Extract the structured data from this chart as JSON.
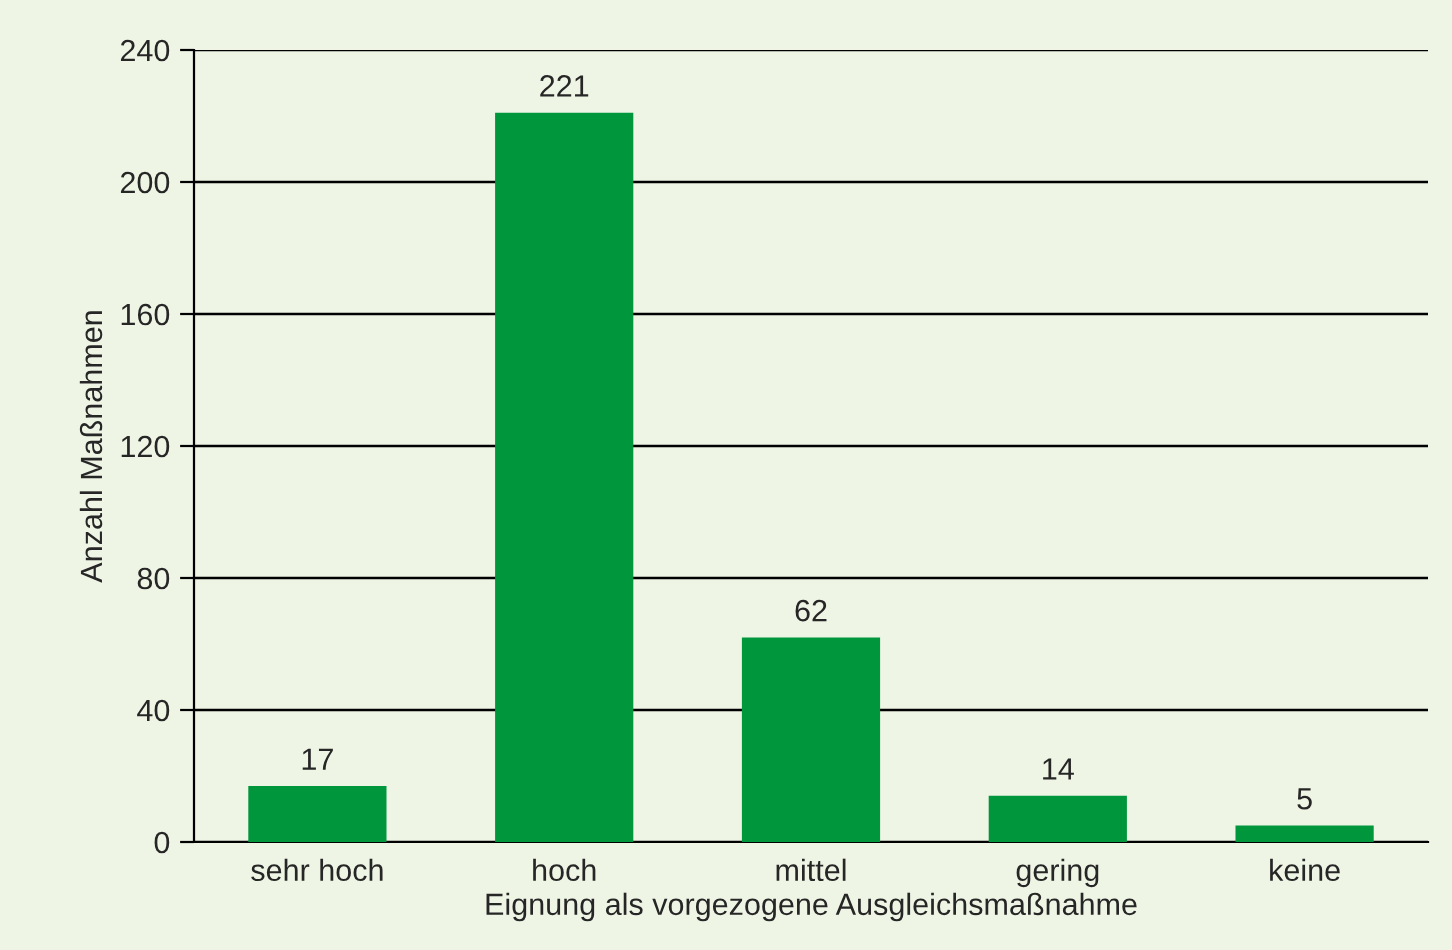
{
  "chart_data": {
    "type": "bar",
    "xlabel": "Eignung als vorgezogene Ausgleichsmaßnahme",
    "ylabel": "Anzahl Maßnahmen",
    "categories": [
      "sehr hoch",
      "hoch",
      "mittel",
      "gering",
      "keine"
    ],
    "values": [
      17,
      221,
      62,
      14,
      5
    ],
    "color": "#00963c",
    "ylim": [
      0,
      240
    ],
    "yticks": [
      0,
      40,
      80,
      120,
      160,
      200,
      240
    ],
    "grid": "y",
    "data_labels": true
  }
}
